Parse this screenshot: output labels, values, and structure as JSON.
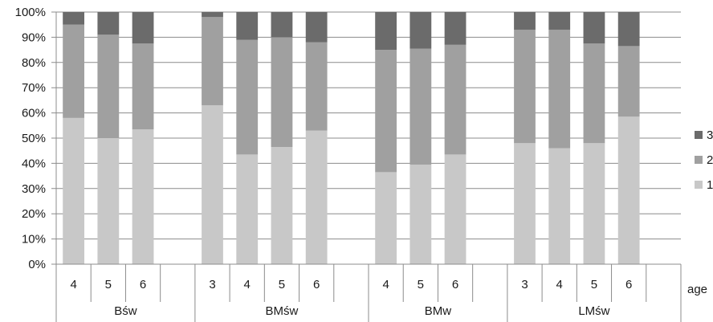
{
  "chart_data": {
    "type": "bar",
    "stacked": true,
    "percent": true,
    "ylim": [
      0,
      100
    ],
    "yticks": [
      "0%",
      "10%",
      "20%",
      "30%",
      "40%",
      "50%",
      "60%",
      "70%",
      "80%",
      "90%",
      "100%"
    ],
    "x_axis_title": "age",
    "groups": [
      {
        "label": "Bśw",
        "ages": [
          "4",
          "5",
          "6"
        ]
      },
      {
        "label": "BMśw",
        "ages": [
          "3",
          "4",
          "5",
          "6"
        ]
      },
      {
        "label": "BMw",
        "ages": [
          "4",
          "5",
          "6"
        ]
      },
      {
        "label": "LMśw",
        "ages": [
          "3",
          "4",
          "5",
          "6"
        ]
      }
    ],
    "categories": [
      "Bśw 4",
      "Bśw 5",
      "Bśw 6",
      "BMśw 3",
      "BMśw 4",
      "BMśw 5",
      "BMśw 6",
      "BMw 4",
      "BMw 5",
      "BMw 6",
      "LMśw 3",
      "LMśw 4",
      "LMśw 5",
      "LMśw 6"
    ],
    "series": [
      {
        "name": "1",
        "color": "#c8c8c8",
        "values": [
          58,
          50,
          53.5,
          63,
          43.5,
          46.5,
          53,
          36.5,
          39.5,
          43.5,
          48,
          46,
          48,
          58.5
        ]
      },
      {
        "name": "2",
        "color": "#a0a0a0",
        "values": [
          37,
          41,
          34,
          35,
          45.5,
          43.5,
          35,
          48.5,
          46,
          43.5,
          45,
          47,
          39.5,
          28
        ]
      },
      {
        "name": "3",
        "color": "#6b6b6b",
        "values": [
          5,
          9,
          12.5,
          2,
          11,
          10,
          12,
          15,
          14.5,
          13,
          7,
          7,
          12.5,
          13.5
        ]
      }
    ],
    "legend": {
      "position": "right",
      "order": [
        "3",
        "2",
        "1"
      ]
    },
    "grid": true
  }
}
